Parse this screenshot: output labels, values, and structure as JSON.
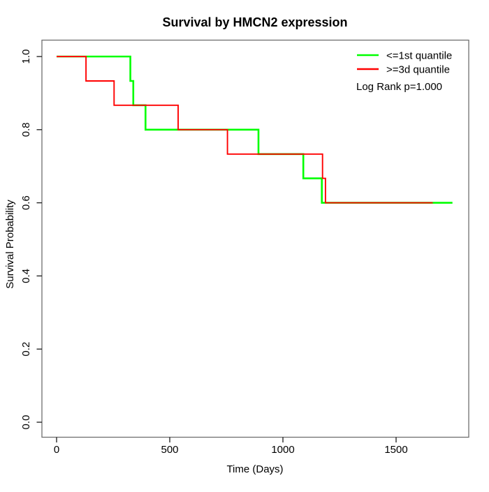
{
  "title": "Survival by HMCN2 expression",
  "xlabel": "Time (Days)",
  "ylabel": "Survival Probability",
  "legend": {
    "position": "top-right",
    "items": [
      {
        "label": "<=1st quantile",
        "color": "#00ff00"
      },
      {
        "label": ">=3d quantile",
        "color": "#ff0000"
      }
    ],
    "note": "Log Rank p=1.000"
  },
  "axes": {
    "x_tick_labels": [
      "0",
      "500",
      "1000",
      "1500"
    ],
    "y_tick_labels": [
      "0.0",
      "0.2",
      "0.4",
      "0.6",
      "0.8",
      "1.0"
    ],
    "xlim": [
      0,
      1750
    ],
    "ylim": [
      0.0,
      1.0
    ],
    "grid": "off"
  },
  "chart_data": {
    "type": "line",
    "subtype": "kaplan-meier-step",
    "title": "Survival by HMCN2 expression",
    "xlabel": "Time (Days)",
    "ylabel": "Survival Probability",
    "xlim": [
      0,
      1750
    ],
    "ylim": [
      0.0,
      1.0
    ],
    "legend_position": "top-right",
    "annotation": "Log Rank p=1.000",
    "series": [
      {
        "name": "<=1st quantile",
        "color": "#00ff00",
        "steps": [
          [
            0,
            1.0
          ],
          [
            326,
            0.9333
          ],
          [
            339,
            0.8667
          ],
          [
            393,
            0.8
          ],
          [
            892,
            0.7333
          ],
          [
            1090,
            0.6667
          ],
          [
            1172,
            0.6
          ],
          [
            1749,
            0.6
          ]
        ]
      },
      {
        "name": ">=3d quantile",
        "color": "#ff0000",
        "steps": [
          [
            0,
            1.0
          ],
          [
            130,
            0.9333
          ],
          [
            254,
            0.8667
          ],
          [
            537,
            0.8
          ],
          [
            755,
            0.7333
          ],
          [
            1175,
            0.6667
          ],
          [
            1188,
            0.6
          ],
          [
            1662,
            0.6
          ]
        ]
      }
    ]
  }
}
